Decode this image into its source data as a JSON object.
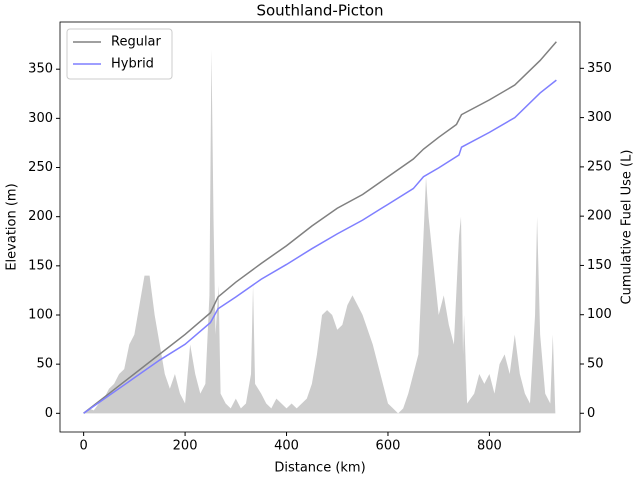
{
  "chart_data": {
    "type": "line",
    "title": "Southland-Picton",
    "xlabel": "Distance (km)",
    "ylabel": "Elevation (m)",
    "y2label": "Cumulative Fuel Use (L)",
    "xlim": [
      -46.6,
      978.6
    ],
    "xticks": [
      0,
      200,
      400,
      600,
      800
    ],
    "ylim": [
      -19,
      398
    ],
    "yticks": [
      0,
      50,
      100,
      150,
      200,
      250,
      300,
      350
    ],
    "y2lim": [
      -19,
      397
    ],
    "y2ticks": [
      0,
      50,
      100,
      150,
      200,
      250,
      300,
      350
    ],
    "legend": "upper left",
    "area": {
      "color": "#cccccc",
      "x": [
        0,
        10,
        20,
        30,
        40,
        50,
        60,
        70,
        80,
        90,
        100,
        110,
        120,
        130,
        140,
        150,
        160,
        170,
        180,
        190,
        200,
        210,
        220,
        230,
        240,
        248,
        252,
        256,
        260,
        266,
        270,
        280,
        290,
        300,
        310,
        320,
        330,
        334,
        338,
        350,
        360,
        370,
        380,
        390,
        400,
        410,
        420,
        430,
        440,
        450,
        460,
        470,
        480,
        490,
        500,
        510,
        520,
        530,
        540,
        550,
        560,
        570,
        580,
        590,
        600,
        610,
        620,
        630,
        640,
        650,
        660,
        670,
        675,
        680,
        690,
        700,
        710,
        720,
        730,
        740,
        744,
        748,
        750,
        756,
        770,
        780,
        790,
        800,
        810,
        820,
        830,
        840,
        850,
        860,
        870,
        880,
        890,
        894,
        900,
        910,
        920,
        925,
        930,
        932
      ],
      "values": [
        0,
        5,
        3,
        10,
        15,
        25,
        30,
        40,
        45,
        70,
        80,
        110,
        140,
        140,
        100,
        70,
        40,
        25,
        40,
        20,
        10,
        70,
        40,
        20,
        30,
        120,
        370,
        200,
        80,
        130,
        20,
        10,
        5,
        15,
        5,
        10,
        40,
        130,
        30,
        20,
        10,
        5,
        15,
        10,
        5,
        10,
        5,
        10,
        15,
        30,
        60,
        100,
        105,
        100,
        85,
        90,
        110,
        120,
        110,
        100,
        85,
        70,
        50,
        30,
        10,
        5,
        0,
        5,
        20,
        40,
        60,
        180,
        240,
        200,
        150,
        100,
        120,
        90,
        70,
        180,
        200,
        60,
        100,
        10,
        20,
        40,
        30,
        40,
        20,
        50,
        60,
        40,
        80,
        40,
        20,
        10,
        100,
        200,
        80,
        20,
        10,
        80,
        0,
        0
      ]
    },
    "series": [
      {
        "name": "Regular",
        "color": "#808080",
        "axis": "y2",
        "x": [
          0,
          50,
          100,
          150,
          200,
          250,
          265,
          300,
          350,
          400,
          450,
          500,
          550,
          600,
          650,
          670,
          700,
          735,
          745,
          800,
          850,
          900,
          932
        ],
        "values": [
          0,
          20,
          40,
          60,
          80,
          102,
          118,
          133,
          152,
          170,
          190,
          208,
          222,
          240,
          258,
          268,
          280,
          293,
          303,
          318,
          333,
          358,
          377
        ]
      },
      {
        "name": "Hybrid",
        "color": "#7f7fff",
        "axis": "y2",
        "x": [
          0,
          50,
          100,
          150,
          200,
          250,
          265,
          300,
          350,
          400,
          450,
          500,
          550,
          600,
          650,
          670,
          700,
          740,
          745,
          800,
          850,
          900,
          932
        ],
        "values": [
          0,
          18,
          36,
          54,
          70,
          92,
          106,
          118,
          136,
          151,
          167,
          182,
          196,
          212,
          228,
          240,
          249,
          262,
          270,
          285,
          300,
          325,
          338
        ]
      }
    ]
  }
}
